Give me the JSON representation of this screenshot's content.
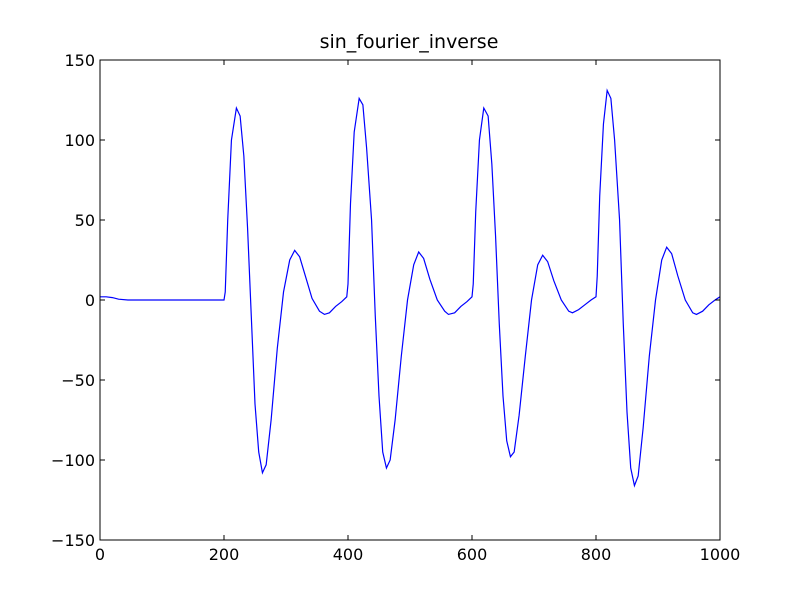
{
  "chart_data": {
    "type": "line",
    "title": "sin_fourier_inverse",
    "xlabel": "",
    "ylabel": "",
    "xlim": [
      0,
      1000
    ],
    "ylim": [
      -150,
      150
    ],
    "grid": false,
    "legend": "none",
    "x_ticks": [
      0,
      200,
      400,
      600,
      800,
      1000
    ],
    "y_ticks": [
      150,
      100,
      50,
      0,
      -50,
      -100,
      -150
    ],
    "x_tick_labels": [
      "0",
      "200",
      "400",
      "600",
      "800",
      "1000"
    ],
    "y_tick_labels": [
      "150",
      "100",
      "50",
      "0",
      "−50",
      "−100",
      "−150"
    ],
    "series": [
      {
        "color": "#0000ff",
        "points": [
          [
            0,
            2
          ],
          [
            10,
            2
          ],
          [
            20,
            1.5
          ],
          [
            30,
            0.5
          ],
          [
            45,
            0
          ],
          [
            100,
            0
          ],
          [
            150,
            0
          ],
          [
            200,
            0
          ],
          [
            202,
            5
          ],
          [
            206,
            50
          ],
          [
            212,
            100
          ],
          [
            220,
            120
          ],
          [
            226,
            115
          ],
          [
            232,
            90
          ],
          [
            238,
            45
          ],
          [
            244,
            -10
          ],
          [
            250,
            -65
          ],
          [
            256,
            -95
          ],
          [
            262,
            -108
          ],
          [
            268,
            -103
          ],
          [
            276,
            -75
          ],
          [
            286,
            -30
          ],
          [
            296,
            5
          ],
          [
            306,
            25
          ],
          [
            314,
            31
          ],
          [
            322,
            27
          ],
          [
            332,
            14
          ],
          [
            342,
            1
          ],
          [
            354,
            -7
          ],
          [
            362,
            -9
          ],
          [
            370,
            -8
          ],
          [
            380,
            -4
          ],
          [
            390,
            -1
          ],
          [
            398,
            2
          ],
          [
            400,
            10
          ],
          [
            404,
            60
          ],
          [
            410,
            105
          ],
          [
            418,
            126
          ],
          [
            424,
            122
          ],
          [
            430,
            95
          ],
          [
            438,
            50
          ],
          [
            444,
            -10
          ],
          [
            450,
            -60
          ],
          [
            456,
            -95
          ],
          [
            462,
            -105
          ],
          [
            468,
            -100
          ],
          [
            476,
            -75
          ],
          [
            486,
            -35
          ],
          [
            496,
            0
          ],
          [
            506,
            22
          ],
          [
            514,
            30
          ],
          [
            522,
            26
          ],
          [
            532,
            13
          ],
          [
            544,
            0
          ],
          [
            556,
            -7
          ],
          [
            562,
            -9
          ],
          [
            572,
            -8
          ],
          [
            582,
            -4
          ],
          [
            592,
            -1
          ],
          [
            600,
            2
          ],
          [
            602,
            10
          ],
          [
            606,
            55
          ],
          [
            612,
            100
          ],
          [
            619,
            120
          ],
          [
            626,
            115
          ],
          [
            632,
            85
          ],
          [
            638,
            40
          ],
          [
            644,
            -15
          ],
          [
            650,
            -60
          ],
          [
            656,
            -88
          ],
          [
            662,
            -98
          ],
          [
            668,
            -95
          ],
          [
            676,
            -72
          ],
          [
            686,
            -35
          ],
          [
            696,
            0
          ],
          [
            706,
            22
          ],
          [
            714,
            28
          ],
          [
            722,
            24
          ],
          [
            732,
            12
          ],
          [
            744,
            0
          ],
          [
            756,
            -7
          ],
          [
            762,
            -8
          ],
          [
            772,
            -6
          ],
          [
            782,
            -3
          ],
          [
            792,
            0
          ],
          [
            800,
            2
          ],
          [
            802,
            15
          ],
          [
            806,
            65
          ],
          [
            812,
            110
          ],
          [
            818,
            131
          ],
          [
            824,
            126
          ],
          [
            830,
            100
          ],
          [
            838,
            50
          ],
          [
            844,
            -15
          ],
          [
            850,
            -70
          ],
          [
            856,
            -105
          ],
          [
            862,
            -116
          ],
          [
            868,
            -110
          ],
          [
            876,
            -80
          ],
          [
            886,
            -35
          ],
          [
            896,
            0
          ],
          [
            906,
            25
          ],
          [
            914,
            33
          ],
          [
            922,
            29
          ],
          [
            932,
            15
          ],
          [
            944,
            0
          ],
          [
            956,
            -8
          ],
          [
            962,
            -9
          ],
          [
            972,
            -7
          ],
          [
            982,
            -3
          ],
          [
            992,
            0
          ],
          [
            1000,
            2
          ]
        ]
      }
    ]
  }
}
